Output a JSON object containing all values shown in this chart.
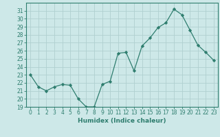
{
  "x": [
    0,
    1,
    2,
    3,
    4,
    5,
    6,
    7,
    8,
    9,
    10,
    11,
    12,
    13,
    14,
    15,
    16,
    17,
    18,
    19,
    20,
    21,
    22,
    23
  ],
  "y": [
    23,
    21.5,
    21,
    21.5,
    21.8,
    21.7,
    20.0,
    19.0,
    19.0,
    21.8,
    22.2,
    25.7,
    25.8,
    23.5,
    26.6,
    27.6,
    28.9,
    29.5,
    31.2,
    30.5,
    28.6,
    26.7,
    25.8,
    24.8
  ],
  "line_color": "#2e7d6e",
  "marker": "D",
  "marker_size": 2.2,
  "bg_color": "#cde8e8",
  "grid_color": "#b0d0d0",
  "xlabel": "Humidex (Indice chaleur)",
  "ylim": [
    19,
    32
  ],
  "yticks": [
    19,
    20,
    21,
    22,
    23,
    24,
    25,
    26,
    27,
    28,
    29,
    30,
    31
  ],
  "xlim": [
    -0.5,
    23.5
  ],
  "xticks": [
    0,
    1,
    2,
    3,
    4,
    5,
    6,
    7,
    8,
    9,
    10,
    11,
    12,
    13,
    14,
    15,
    16,
    17,
    18,
    19,
    20,
    21,
    22,
    23
  ],
  "tick_color": "#2e7d6e",
  "label_color": "#2e7d6e",
  "axis_color": "#2e7d6e",
  "tick_fontsize": 5.5,
  "xlabel_fontsize": 6.5
}
